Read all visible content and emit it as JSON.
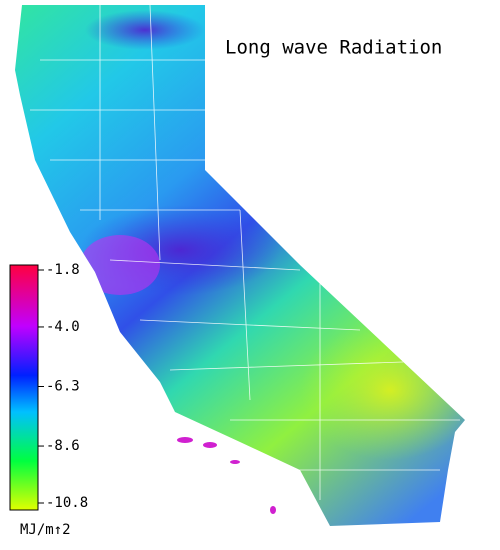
{
  "title": "Long wave Radiation",
  "colorbar": {
    "lim": [
      -10.8,
      -1.8
    ],
    "ticks": [
      -1.8,
      {
        "value": -4,
        "label": "-4.0"
      },
      -6.3,
      -8.6,
      -10.8
    ],
    "unit": "MJ/m↑2"
  }
}
